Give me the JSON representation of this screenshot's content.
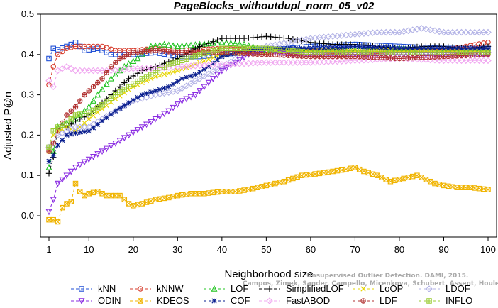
{
  "chart_data": {
    "type": "line",
    "title": "PageBlocks_withoutdupl_norm_05_v02",
    "xlabel": "Neighborhood size",
    "ylabel": "Adjusted P@n",
    "xlim": [
      1,
      100
    ],
    "ylim": [
      -0.05,
      0.5
    ],
    "x_ticks": [
      1,
      10,
      20,
      30,
      40,
      50,
      60,
      70,
      80,
      90,
      100
    ],
    "y_ticks": [
      0.0,
      0.1,
      0.2,
      0.3,
      0.4,
      0.5
    ],
    "x_tick_labels": [
      "1",
      "10",
      "20",
      "30",
      "40",
      "50",
      "60",
      "70",
      "80",
      "90",
      "100"
    ],
    "y_tick_labels": [
      "0.0",
      "0.1",
      "0.2",
      "0.3",
      "0.4",
      "0.5"
    ],
    "grid": false,
    "legend_position": "bottom",
    "series": [
      {
        "name": "kNN",
        "color": "#1f4fd6",
        "marker": "square",
        "dash": "dashed",
        "points": [
          [
            1,
            0.39
          ],
          [
            2,
            0.415
          ],
          [
            3,
            0.412
          ],
          [
            5,
            0.42
          ],
          [
            7,
            0.43
          ],
          [
            9,
            0.41
          ],
          [
            12,
            0.415
          ],
          [
            15,
            0.4
          ],
          [
            20,
            0.4
          ],
          [
            25,
            0.405
          ],
          [
            30,
            0.395
          ],
          [
            35,
            0.395
          ],
          [
            40,
            0.4
          ],
          [
            50,
            0.41
          ],
          [
            60,
            0.42
          ],
          [
            70,
            0.425
          ],
          [
            80,
            0.42
          ],
          [
            90,
            0.415
          ],
          [
            100,
            0.415
          ]
        ]
      },
      {
        "name": "kNNW",
        "color": "#d63a2a",
        "marker": "circle",
        "dash": "dashed",
        "points": [
          [
            1,
            0.325
          ],
          [
            2,
            0.37
          ],
          [
            3,
            0.4
          ],
          [
            5,
            0.415
          ],
          [
            7,
            0.42
          ],
          [
            10,
            0.42
          ],
          [
            13,
            0.42
          ],
          [
            16,
            0.41
          ],
          [
            20,
            0.41
          ],
          [
            25,
            0.415
          ],
          [
            30,
            0.41
          ],
          [
            40,
            0.415
          ],
          [
            50,
            0.41
          ],
          [
            60,
            0.41
          ],
          [
            70,
            0.405
          ],
          [
            80,
            0.41
          ],
          [
            90,
            0.41
          ],
          [
            100,
            0.43
          ]
        ]
      },
      {
        "name": "LOF",
        "color": "#22c422",
        "marker": "triangle-up",
        "dash": "dashed",
        "points": [
          [
            1,
            0.12
          ],
          [
            2,
            0.16
          ],
          [
            3,
            0.22
          ],
          [
            5,
            0.23
          ],
          [
            7,
            0.24
          ],
          [
            10,
            0.27
          ],
          [
            12,
            0.3
          ],
          [
            15,
            0.34
          ],
          [
            18,
            0.37
          ],
          [
            21,
            0.39
          ],
          [
            24,
            0.42
          ],
          [
            27,
            0.425
          ],
          [
            30,
            0.42
          ],
          [
            35,
            0.425
          ],
          [
            40,
            0.43
          ],
          [
            45,
            0.425
          ],
          [
            50,
            0.41
          ],
          [
            60,
            0.41
          ],
          [
            70,
            0.41
          ],
          [
            80,
            0.415
          ],
          [
            90,
            0.41
          ],
          [
            100,
            0.41
          ]
        ]
      },
      {
        "name": "SimplifiedLOF",
        "color": "#000000",
        "marker": "plus",
        "dash": "dashed",
        "points": [
          [
            1,
            0.105
          ],
          [
            2,
            0.145
          ],
          [
            3,
            0.215
          ],
          [
            5,
            0.22
          ],
          [
            7,
            0.235
          ],
          [
            10,
            0.25
          ],
          [
            13,
            0.28
          ],
          [
            16,
            0.31
          ],
          [
            19,
            0.34
          ],
          [
            22,
            0.36
          ],
          [
            25,
            0.37
          ],
          [
            30,
            0.39
          ],
          [
            35,
            0.42
          ],
          [
            40,
            0.44
          ],
          [
            45,
            0.44
          ],
          [
            50,
            0.445
          ],
          [
            55,
            0.44
          ],
          [
            60,
            0.43
          ],
          [
            65,
            0.425
          ],
          [
            70,
            0.425
          ],
          [
            75,
            0.42
          ],
          [
            80,
            0.415
          ],
          [
            85,
            0.42
          ],
          [
            90,
            0.42
          ],
          [
            95,
            0.415
          ],
          [
            100,
            0.42
          ]
        ]
      },
      {
        "name": "LoOP",
        "color": "#e6d400",
        "marker": "x",
        "dash": "dashed",
        "points": [
          [
            1,
            0.16
          ],
          [
            2,
            0.2
          ],
          [
            3,
            0.21
          ],
          [
            5,
            0.22
          ],
          [
            7,
            0.21
          ],
          [
            10,
            0.24
          ],
          [
            13,
            0.265
          ],
          [
            16,
            0.29
          ],
          [
            20,
            0.32
          ],
          [
            25,
            0.345
          ],
          [
            30,
            0.36
          ],
          [
            35,
            0.38
          ],
          [
            40,
            0.4
          ],
          [
            45,
            0.405
          ],
          [
            50,
            0.405
          ],
          [
            55,
            0.41
          ],
          [
            60,
            0.41
          ],
          [
            70,
            0.41
          ],
          [
            80,
            0.41
          ],
          [
            90,
            0.41
          ],
          [
            100,
            0.41
          ]
        ]
      },
      {
        "name": "LDOF",
        "color": "#b3b3e6",
        "marker": "diamond",
        "dash": "dashed",
        "points": [
          [
            1,
            0.17
          ],
          [
            2,
            0.18
          ],
          [
            3,
            0.2
          ],
          [
            5,
            0.21
          ],
          [
            7,
            0.22
          ],
          [
            10,
            0.22
          ],
          [
            13,
            0.24
          ],
          [
            16,
            0.26
          ],
          [
            20,
            0.285
          ],
          [
            25,
            0.3
          ],
          [
            30,
            0.31
          ],
          [
            35,
            0.34
          ],
          [
            40,
            0.37
          ],
          [
            45,
            0.4
          ],
          [
            50,
            0.42
          ],
          [
            55,
            0.43
          ],
          [
            60,
            0.44
          ],
          [
            65,
            0.445
          ],
          [
            70,
            0.45
          ],
          [
            75,
            0.455
          ],
          [
            80,
            0.455
          ],
          [
            85,
            0.465
          ],
          [
            90,
            0.455
          ],
          [
            95,
            0.455
          ],
          [
            100,
            0.455
          ]
        ]
      },
      {
        "name": "ODIN",
        "color": "#8a2be2",
        "marker": "triangle-down",
        "dash": "dashed",
        "points": [
          [
            1,
            0.01
          ],
          [
            2,
            0.04
          ],
          [
            3,
            0.08
          ],
          [
            5,
            0.1
          ],
          [
            7,
            0.12
          ],
          [
            10,
            0.14
          ],
          [
            13,
            0.16
          ],
          [
            16,
            0.18
          ],
          [
            19,
            0.2
          ],
          [
            22,
            0.22
          ],
          [
            25,
            0.24
          ],
          [
            28,
            0.26
          ],
          [
            31,
            0.285
          ],
          [
            34,
            0.3
          ],
          [
            37,
            0.33
          ],
          [
            40,
            0.36
          ],
          [
            43,
            0.38
          ],
          [
            46,
            0.4
          ],
          [
            50,
            0.41
          ],
          [
            55,
            0.4
          ],
          [
            60,
            0.4
          ],
          [
            70,
            0.4
          ],
          [
            80,
            0.4
          ],
          [
            90,
            0.4
          ],
          [
            100,
            0.4
          ]
        ]
      },
      {
        "name": "KDEOS",
        "color": "#f0b400",
        "marker": "square-x",
        "dash": "dashed",
        "points": [
          [
            1,
            -0.01
          ],
          [
            2,
            -0.01
          ],
          [
            3,
            -0.015
          ],
          [
            4,
            0.02
          ],
          [
            5,
            0.03
          ],
          [
            6,
            0.035
          ],
          [
            7,
            0.08
          ],
          [
            8,
            0.06
          ],
          [
            9,
            0.05
          ],
          [
            10,
            0.055
          ],
          [
            12,
            0.06
          ],
          [
            14,
            0.05
          ],
          [
            17,
            0.05
          ],
          [
            19,
            0.03
          ],
          [
            20,
            0.025
          ],
          [
            22,
            0.03
          ],
          [
            25,
            0.04
          ],
          [
            28,
            0.045
          ],
          [
            30,
            0.05
          ],
          [
            33,
            0.055
          ],
          [
            36,
            0.055
          ],
          [
            40,
            0.06
          ],
          [
            43,
            0.06
          ],
          [
            46,
            0.065
          ],
          [
            50,
            0.075
          ],
          [
            54,
            0.085
          ],
          [
            58,
            0.1
          ],
          [
            62,
            0.105
          ],
          [
            65,
            0.11
          ],
          [
            68,
            0.115
          ],
          [
            70,
            0.12
          ],
          [
            72,
            0.11
          ],
          [
            75,
            0.1
          ],
          [
            78,
            0.085
          ],
          [
            80,
            0.09
          ],
          [
            82,
            0.095
          ],
          [
            84,
            0.1
          ],
          [
            86,
            0.09
          ],
          [
            88,
            0.08
          ],
          [
            90,
            0.075
          ],
          [
            93,
            0.07
          ],
          [
            96,
            0.07
          ],
          [
            100,
            0.065
          ]
        ]
      },
      {
        "name": "COF",
        "color": "#0a1f8f",
        "marker": "asterisk",
        "dash": "dashed",
        "points": [
          [
            1,
            0.135
          ],
          [
            2,
            0.15
          ],
          [
            3,
            0.175
          ],
          [
            5,
            0.2
          ],
          [
            7,
            0.205
          ],
          [
            10,
            0.21
          ],
          [
            13,
            0.235
          ],
          [
            16,
            0.26
          ],
          [
            19,
            0.28
          ],
          [
            22,
            0.3
          ],
          [
            25,
            0.31
          ],
          [
            28,
            0.32
          ],
          [
            31,
            0.34
          ],
          [
            34,
            0.35
          ],
          [
            37,
            0.37
          ],
          [
            40,
            0.395
          ],
          [
            45,
            0.41
          ],
          [
            50,
            0.415
          ],
          [
            60,
            0.415
          ],
          [
            70,
            0.42
          ],
          [
            80,
            0.415
          ],
          [
            90,
            0.415
          ],
          [
            100,
            0.415
          ]
        ]
      },
      {
        "name": "FastABOD",
        "color": "#f0a8f0",
        "marker": "diamond",
        "dash": "dashed",
        "points": [
          [
            1,
            0.335
          ],
          [
            2,
            0.32
          ],
          [
            3,
            0.36
          ],
          [
            5,
            0.37
          ],
          [
            7,
            0.36
          ],
          [
            10,
            0.36
          ],
          [
            15,
            0.36
          ],
          [
            20,
            0.365
          ],
          [
            25,
            0.365
          ],
          [
            30,
            0.37
          ],
          [
            40,
            0.375
          ],
          [
            50,
            0.38
          ],
          [
            60,
            0.38
          ],
          [
            70,
            0.385
          ],
          [
            80,
            0.39
          ],
          [
            90,
            0.385
          ],
          [
            100,
            0.385
          ]
        ]
      },
      {
        "name": "LDF",
        "color": "#b03030",
        "marker": "circle-plus",
        "dash": "dashed",
        "points": [
          [
            1,
            0.16
          ],
          [
            2,
            0.18
          ],
          [
            3,
            0.21
          ],
          [
            5,
            0.25
          ],
          [
            7,
            0.27
          ],
          [
            9,
            0.3
          ],
          [
            11,
            0.32
          ],
          [
            13,
            0.34
          ],
          [
            15,
            0.37
          ],
          [
            17,
            0.39
          ],
          [
            20,
            0.405
          ],
          [
            25,
            0.41
          ],
          [
            30,
            0.405
          ],
          [
            40,
            0.405
          ],
          [
            50,
            0.4
          ],
          [
            60,
            0.395
          ],
          [
            70,
            0.395
          ],
          [
            80,
            0.39
          ],
          [
            90,
            0.395
          ],
          [
            100,
            0.4
          ]
        ]
      },
      {
        "name": "INFLO",
        "color": "#99cc33",
        "marker": "square-plus",
        "dash": "dashed",
        "points": [
          [
            1,
            0.17
          ],
          [
            2,
            0.21
          ],
          [
            3,
            0.22
          ],
          [
            5,
            0.23
          ],
          [
            7,
            0.25
          ],
          [
            10,
            0.255
          ],
          [
            13,
            0.275
          ],
          [
            16,
            0.3
          ],
          [
            19,
            0.32
          ],
          [
            22,
            0.34
          ],
          [
            25,
            0.355
          ],
          [
            28,
            0.375
          ],
          [
            31,
            0.385
          ],
          [
            35,
            0.4
          ],
          [
            40,
            0.415
          ],
          [
            45,
            0.415
          ],
          [
            50,
            0.415
          ],
          [
            60,
            0.405
          ],
          [
            70,
            0.405
          ],
          [
            80,
            0.405
          ],
          [
            90,
            0.405
          ],
          [
            100,
            0.405
          ]
        ]
      }
    ]
  },
  "watermark": "Campos, Zimek, Sander, Campello, Micenkova, Schubert, Assent, Houle",
  "watermark_top": "Unsupervised Outlier Detection. DAMI, 2015."
}
